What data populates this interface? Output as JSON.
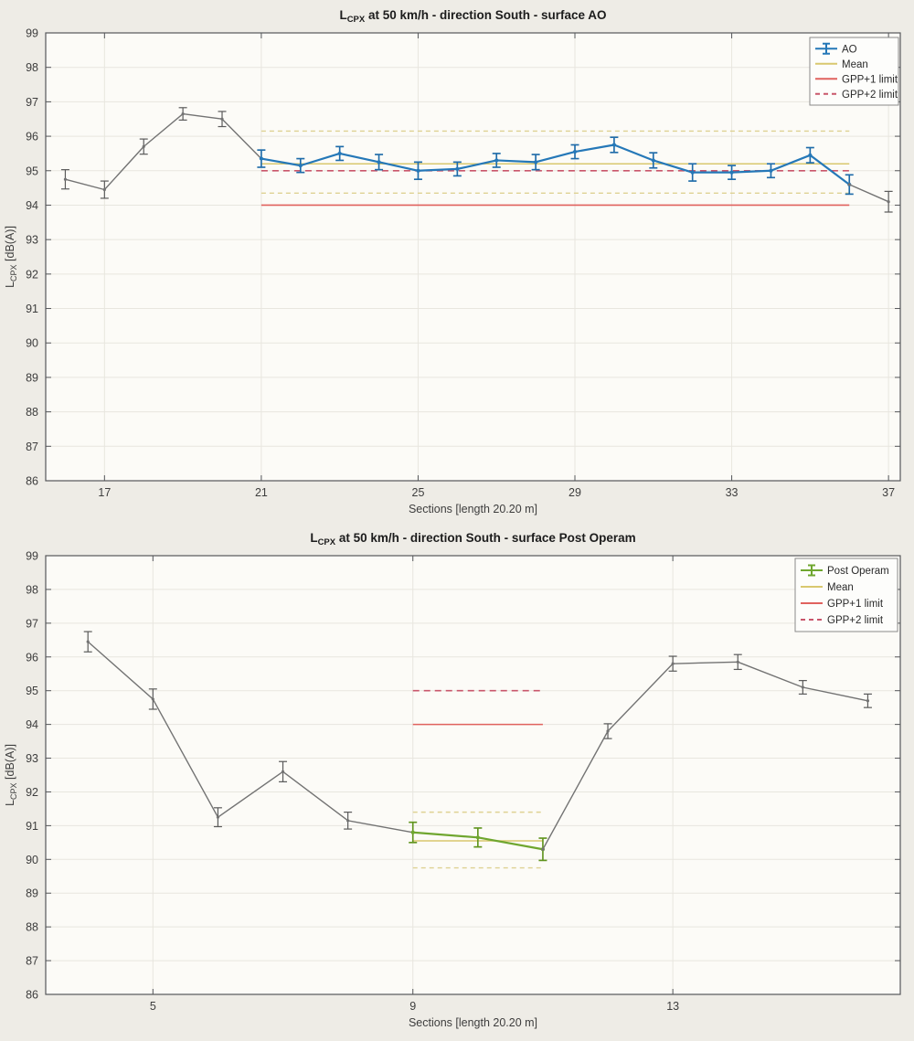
{
  "figure": {
    "background": "#eeece6",
    "plot_background": "#fcfbf7",
    "grid_color": "#e8e6df",
    "axis_color": "#55575a",
    "tick_label_color": "#3d3d3d",
    "title_color": "#1c1c1c",
    "legend_background": "#fdfdfb",
    "legend_border": "#8a8a8a",
    "legend_text_color": "#2a2a2a"
  },
  "chart_data": [
    {
      "id": "surface-ao",
      "type": "line",
      "title": "L_CPX at 50 km/h - direction South - surface AO",
      "title_parts": {
        "prefix": "L",
        "sub": "CPX",
        "rest": " at 50 km/h - direction South - surface AO"
      },
      "xlabel": "Sections [length 20.20 m]",
      "ylabel": "L_CPX [dB(A)]",
      "ylabel_parts": {
        "prefix": "L",
        "sub": "CPX",
        "rest": " [dB(A)]"
      },
      "xlim": [
        15.5,
        37.3
      ],
      "ylim": [
        86,
        99
      ],
      "xticks": [
        17,
        21,
        25,
        29,
        33,
        37
      ],
      "yticks": [
        86,
        87,
        88,
        89,
        90,
        91,
        92,
        93,
        94,
        95,
        96,
        97,
        98,
        99
      ],
      "grid": true,
      "legend": {
        "position": "top-right",
        "items": [
          {
            "label": "AO",
            "color": "#2578b8",
            "line": "solid",
            "marker": "errorbar"
          },
          {
            "label": "Mean",
            "color": "#d9c86f",
            "line": "solid",
            "marker": "none"
          },
          {
            "label": "GPP+1 limit",
            "color": "#e0625e",
            "line": "solid",
            "marker": "none"
          },
          {
            "label": "GPP+2 limit",
            "color": "#c9566b",
            "line": "dashed",
            "marker": "none"
          }
        ]
      },
      "series": [
        {
          "name": "adjacent-sections-lead-in",
          "color": "#737373",
          "errorbar_color": "#5a5a5a",
          "width": 1.4,
          "x": [
            16,
            17,
            18,
            19,
            20,
            21
          ],
          "y": [
            94.75,
            94.45,
            95.7,
            96.65,
            96.5,
            95.35
          ],
          "yerr": [
            0.28,
            0.25,
            0.22,
            0.18,
            0.22,
            null
          ]
        },
        {
          "name": "AO",
          "color": "#2578b8",
          "errorbar_color": "#1e6ba9",
          "width": 2.2,
          "x": [
            21,
            22,
            23,
            24,
            25,
            26,
            27,
            28,
            29,
            30,
            31,
            32,
            33,
            34,
            35,
            36
          ],
          "y": [
            95.35,
            95.15,
            95.5,
            95.25,
            95.0,
            95.05,
            95.3,
            95.25,
            95.55,
            95.75,
            95.3,
            94.95,
            94.95,
            95.0,
            95.45,
            94.6
          ],
          "yerr": [
            0.25,
            0.2,
            0.2,
            0.22,
            0.25,
            0.2,
            0.2,
            0.22,
            0.2,
            0.22,
            0.22,
            0.25,
            0.2,
            0.2,
            0.22,
            0.28
          ]
        },
        {
          "name": "adjacent-sections-lead-out",
          "color": "#737373",
          "errorbar_color": "#5a5a5a",
          "width": 1.4,
          "x": [
            36,
            37
          ],
          "y": [
            94.6,
            94.1
          ],
          "yerr": [
            null,
            0.3
          ]
        }
      ],
      "reference_lines": [
        {
          "name": "mean",
          "label": "Mean",
          "y": 95.2,
          "x_start": 21,
          "x_end": 36,
          "color": "#d9c86f",
          "style": "solid",
          "width": 1.5
        },
        {
          "name": "mean-upper-band",
          "label": "",
          "y": 96.15,
          "x_start": 21,
          "x_end": 36,
          "color": "#ded293",
          "style": "dashed-fine",
          "width": 1.4
        },
        {
          "name": "mean-lower-band",
          "label": "",
          "y": 94.35,
          "x_start": 21,
          "x_end": 36,
          "color": "#ded293",
          "style": "dashed-fine",
          "width": 1.4
        },
        {
          "name": "gpp1-limit",
          "label": "GPP+1 limit",
          "y": 94.0,
          "x_start": 21,
          "x_end": 36,
          "color": "#e0625e",
          "style": "solid",
          "width": 1.6
        },
        {
          "name": "gpp2-limit",
          "label": "GPP+2 limit",
          "y": 95.0,
          "x_start": 21,
          "x_end": 36,
          "color": "#c9566b",
          "style": "dashed",
          "width": 1.6
        }
      ]
    },
    {
      "id": "surface-post-operam",
      "type": "line",
      "title": "L_CPX at 50 km/h - direction South - surface Post Operam",
      "title_parts": {
        "prefix": "L",
        "sub": "CPX",
        "rest": " at 50 km/h - direction South - surface Post Operam"
      },
      "xlabel": "Sections [length 20.20 m]",
      "ylabel": "L_CPX [dB(A)]",
      "ylabel_parts": {
        "prefix": "L",
        "sub": "CPX",
        "rest": " [dB(A)]"
      },
      "xlim": [
        3.35,
        16.5
      ],
      "ylim": [
        86,
        99
      ],
      "xticks": [
        5,
        9,
        13
      ],
      "yticks": [
        86,
        87,
        88,
        89,
        90,
        91,
        92,
        93,
        94,
        95,
        96,
        97,
        98,
        99
      ],
      "grid": true,
      "legend": {
        "position": "top-right",
        "items": [
          {
            "label": "Post Operam",
            "color": "#6fa62f",
            "line": "solid",
            "marker": "errorbar"
          },
          {
            "label": "Mean",
            "color": "#d9c86f",
            "line": "solid",
            "marker": "none"
          },
          {
            "label": "GPP+1 limit",
            "color": "#e0625e",
            "line": "solid",
            "marker": "none"
          },
          {
            "label": "GPP+2 limit",
            "color": "#c9566b",
            "line": "dashed",
            "marker": "none"
          }
        ]
      },
      "series": [
        {
          "name": "adjacent-sections-lead-in",
          "color": "#737373",
          "errorbar_color": "#5a5a5a",
          "width": 1.4,
          "x": [
            4,
            5,
            6,
            7,
            8,
            9
          ],
          "y": [
            96.45,
            94.75,
            91.25,
            92.6,
            91.15,
            90.8
          ],
          "yerr": [
            0.3,
            0.3,
            0.28,
            0.3,
            0.25,
            null
          ]
        },
        {
          "name": "Post Operam",
          "color": "#6fa62f",
          "errorbar_color": "#61951f",
          "width": 2.2,
          "x": [
            9,
            10,
            11
          ],
          "y": [
            90.8,
            90.65,
            90.3
          ],
          "yerr": [
            0.3,
            0.28,
            0.33
          ]
        },
        {
          "name": "adjacent-sections-lead-out",
          "color": "#737373",
          "errorbar_color": "#5a5a5a",
          "width": 1.4,
          "x": [
            11,
            12,
            13,
            14,
            15,
            16
          ],
          "y": [
            90.3,
            93.8,
            95.8,
            95.85,
            95.1,
            94.7
          ],
          "yerr": [
            null,
            0.22,
            0.22,
            0.22,
            0.2,
            0.2
          ]
        }
      ],
      "reference_lines": [
        {
          "name": "mean",
          "label": "Mean",
          "y": 90.55,
          "x_start": 9,
          "x_end": 11,
          "color": "#d9c86f",
          "style": "solid",
          "width": 1.5
        },
        {
          "name": "mean-upper-band",
          "label": "",
          "y": 91.4,
          "x_start": 9,
          "x_end": 11,
          "color": "#ded293",
          "style": "dashed-fine",
          "width": 1.4
        },
        {
          "name": "mean-lower-band",
          "label": "",
          "y": 89.75,
          "x_start": 9,
          "x_end": 11,
          "color": "#ded293",
          "style": "dashed-fine",
          "width": 1.4
        },
        {
          "name": "gpp1-limit",
          "label": "GPP+1 limit",
          "y": 94.0,
          "x_start": 9,
          "x_end": 11,
          "color": "#e0625e",
          "style": "solid",
          "width": 1.6
        },
        {
          "name": "gpp2-limit",
          "label": "GPP+2 limit",
          "y": 95.0,
          "x_start": 9,
          "x_end": 11,
          "color": "#c9566b",
          "style": "dashed",
          "width": 1.6
        }
      ]
    }
  ]
}
